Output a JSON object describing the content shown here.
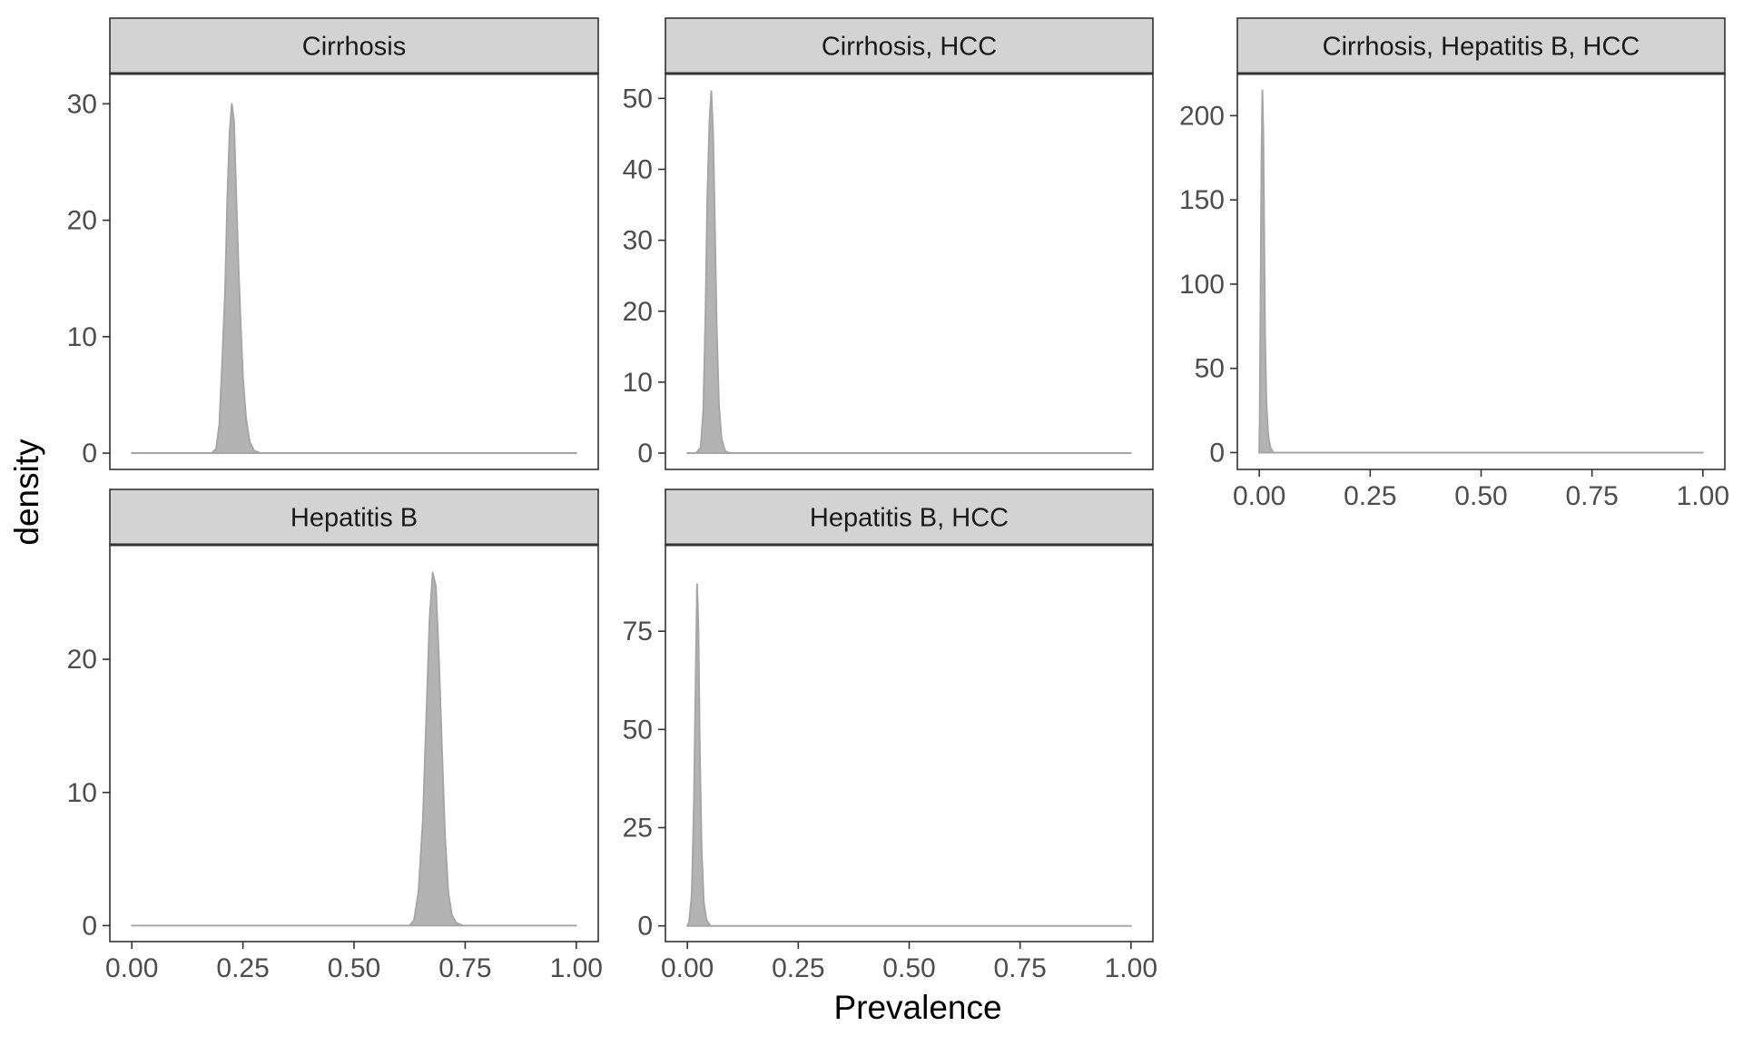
{
  "chart_data": {
    "type": "area",
    "layout": "faceted grid, 3 columns, 2 rows",
    "xlabel": "Prevalence",
    "ylabel": "density",
    "xlim": [
      0,
      1
    ],
    "x_ticks": [
      "0.00",
      "0.25",
      "0.50",
      "0.75",
      "1.00"
    ],
    "fill_color": "#b3b3b3",
    "line_color": "#a6a6a6",
    "strip_fill": "#d3d3d3",
    "grid": false,
    "facets": [
      {
        "title": "Cirrhosis",
        "ylim": [
          -1.4,
          32.6
        ],
        "y_ticks": [
          0,
          10,
          20,
          30
        ],
        "points": [
          [
            0.0,
            0
          ],
          [
            0.18,
            0
          ],
          [
            0.19,
            0.4
          ],
          [
            0.197,
            2.5
          ],
          [
            0.203,
            7.5
          ],
          [
            0.21,
            14
          ],
          [
            0.215,
            22
          ],
          [
            0.22,
            27.5
          ],
          [
            0.225,
            30
          ],
          [
            0.23,
            28.5
          ],
          [
            0.235,
            22
          ],
          [
            0.24,
            16
          ],
          [
            0.245,
            11
          ],
          [
            0.25,
            6.5
          ],
          [
            0.257,
            3
          ],
          [
            0.265,
            1
          ],
          [
            0.275,
            0.2
          ],
          [
            0.29,
            0
          ],
          [
            1.0,
            0
          ]
        ]
      },
      {
        "title": "Cirrhosis, HCC",
        "ylim": [
          -2.3,
          53.5
        ],
        "y_ticks": [
          0,
          10,
          20,
          30,
          40,
          50
        ],
        "points": [
          [
            0.0,
            0
          ],
          [
            0.02,
            0
          ],
          [
            0.03,
            0.8
          ],
          [
            0.036,
            6
          ],
          [
            0.041,
            20
          ],
          [
            0.045,
            36
          ],
          [
            0.05,
            47
          ],
          [
            0.054,
            51
          ],
          [
            0.058,
            45
          ],
          [
            0.062,
            32
          ],
          [
            0.066,
            18
          ],
          [
            0.071,
            7
          ],
          [
            0.077,
            2
          ],
          [
            0.085,
            0.3
          ],
          [
            0.095,
            0
          ],
          [
            1.0,
            0
          ]
        ]
      },
      {
        "title": "Cirrhosis, Hepatitis B, HCC",
        "ylim": [
          -10,
          225
        ],
        "y_ticks": [
          0,
          50,
          100,
          150,
          200
        ],
        "points": [
          [
            0.0,
            0
          ],
          [
            0.001,
            20
          ],
          [
            0.003,
            95
          ],
          [
            0.005,
            175
          ],
          [
            0.007,
            215
          ],
          [
            0.009,
            190
          ],
          [
            0.011,
            130
          ],
          [
            0.013,
            70
          ],
          [
            0.016,
            30
          ],
          [
            0.02,
            10
          ],
          [
            0.025,
            3
          ],
          [
            0.032,
            0
          ],
          [
            1.0,
            0
          ]
        ]
      },
      {
        "title": "Hepatitis B",
        "ylim": [
          -1.2,
          28.6
        ],
        "y_ticks": [
          0,
          10,
          20
        ],
        "points": [
          [
            0.0,
            0
          ],
          [
            0.625,
            0
          ],
          [
            0.635,
            0.4
          ],
          [
            0.645,
            2.5
          ],
          [
            0.655,
            8
          ],
          [
            0.663,
            16
          ],
          [
            0.67,
            23
          ],
          [
            0.677,
            26.5
          ],
          [
            0.684,
            25.5
          ],
          [
            0.691,
            20
          ],
          [
            0.698,
            13
          ],
          [
            0.705,
            6.5
          ],
          [
            0.712,
            2.5
          ],
          [
            0.72,
            0.8
          ],
          [
            0.73,
            0.2
          ],
          [
            0.745,
            0
          ],
          [
            1.0,
            0
          ]
        ]
      },
      {
        "title": "Hepatitis B, HCC",
        "ylim": [
          -4,
          97
        ],
        "y_ticks": [
          0,
          25,
          50,
          75
        ],
        "points": [
          [
            0.0,
            0
          ],
          [
            0.004,
            1
          ],
          [
            0.01,
            8
          ],
          [
            0.015,
            32
          ],
          [
            0.019,
            65
          ],
          [
            0.022,
            87
          ],
          [
            0.025,
            75
          ],
          [
            0.028,
            45
          ],
          [
            0.032,
            20
          ],
          [
            0.037,
            6
          ],
          [
            0.043,
            1.5
          ],
          [
            0.052,
            0
          ],
          [
            1.0,
            0
          ]
        ]
      }
    ]
  }
}
